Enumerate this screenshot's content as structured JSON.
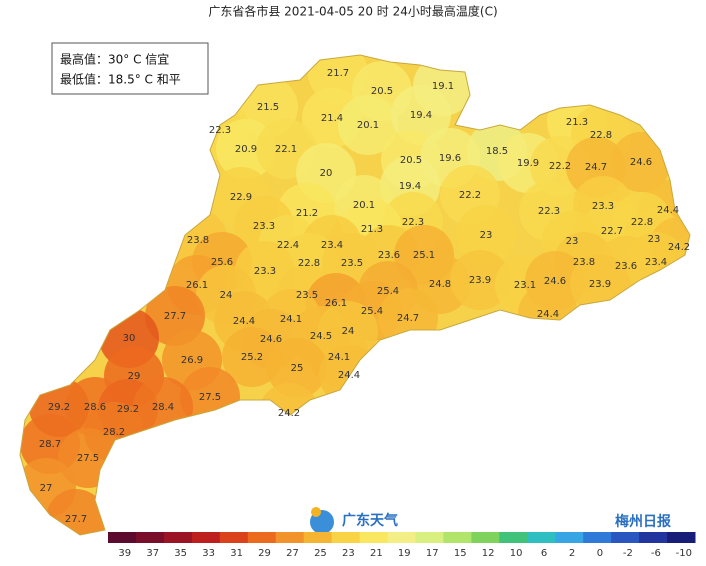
{
  "title": "广东省各市县 2021-04-05 20 时 24小时最高温度(C)",
  "info": {
    "max": "最高值：30° C 信宜",
    "min": "最低值：18.5° C 和平"
  },
  "stations": [
    21.7,
    20.5,
    19.1,
    21.5,
    21.4,
    20.1,
    19.4,
    21.3,
    22.8,
    22.3,
    20.9,
    22.1,
    18.5,
    20.5,
    19.6,
    19.9,
    22.2,
    24.7,
    24.6,
    20,
    19.4,
    22.9,
    20.1,
    22.2,
    21.2,
    22.3,
    23.3,
    24.4,
    23.3,
    22.3,
    21.3,
    22.8,
    22.7,
    23.8,
    22.4,
    23.4,
    23,
    23,
    23,
    24.2,
    25.6,
    23.6,
    25.1,
    22.8,
    23.5,
    23.3,
    23.8,
    23.6,
    23.4,
    26.1,
    24.8,
    23.9,
    23.1,
    24.6,
    23.9,
    24,
    25.4,
    23.5,
    26.1,
    27.7,
    24.4,
    24.1,
    25.4,
    24.7,
    24.4,
    30,
    24.6,
    24.5,
    24,
    26.9,
    25.2,
    24.1,
    29,
    25,
    24.4,
    27.5,
    29.2,
    28.6,
    29.2,
    28.4,
    24.2,
    28.2,
    28.7,
    27.5,
    27,
    27.7
  ],
  "legend": {
    "ticks": [
      39,
      37,
      35,
      33,
      31,
      29,
      27,
      25,
      23,
      21,
      19,
      17,
      15,
      12,
      10,
      6,
      2,
      0,
      -2,
      -6,
      -10
    ],
    "colors": [
      "#5c0a2e",
      "#7a0e2a",
      "#9a1426",
      "#bd1f1f",
      "#d9421a",
      "#ec6a1e",
      "#f2922a",
      "#f6b433",
      "#f8d345",
      "#f9e760",
      "#f3ef86",
      "#d9ef80",
      "#b1e46a",
      "#7fd35c",
      "#40c27a",
      "#2fbfc0",
      "#38a6e4",
      "#2f7ad8",
      "#2a56c2",
      "#22349e",
      "#181d78"
    ]
  },
  "logo": "广东天气",
  "watermark": "梅州日报"
}
